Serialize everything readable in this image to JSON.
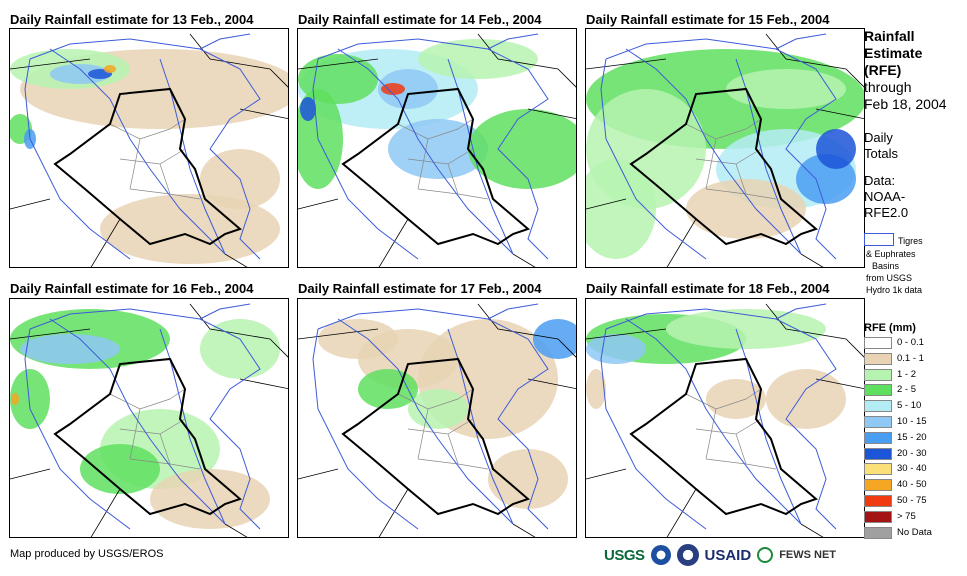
{
  "panels": [
    {
      "title": "Daily Rainfall estimate for 13 Feb., 2004"
    },
    {
      "title": "Daily Rainfall estimate for 14 Feb., 2004"
    },
    {
      "title": "Daily Rainfall estimate for 15 Feb., 2004"
    },
    {
      "title": "Daily Rainfall estimate for 16 Feb., 2004"
    },
    {
      "title": "Daily Rainfall estimate for 17 Feb., 2004"
    },
    {
      "title": "Daily Rainfall estimate for 18 Feb., 2004"
    }
  ],
  "legend": {
    "title_1": "Rainfall",
    "title_2": "Estimate",
    "title_3": "(RFE)",
    "through": "through",
    "through_date": "Feb 18, 2004",
    "daily_1": "Daily",
    "daily_2": "Totals",
    "data_1": "Data:",
    "data_2": "NOAA-",
    "data_3": "RFE2.0",
    "basin_1": "Tigres",
    "basin_2": "& Euphrates",
    "basin_3": "Basins",
    "basin_4": "from USGS",
    "basin_5": "Hydro 1k data",
    "rfe_head": "RFE (mm)",
    "classes": [
      {
        "label": "0 - 0.1",
        "color": "#ffffff"
      },
      {
        "label": "0.1 - 1",
        "color": "#e8d3b4"
      },
      {
        "label": "1 - 2",
        "color": "#b6f3b0"
      },
      {
        "label": "2 - 5",
        "color": "#5fdf5f"
      },
      {
        "label": "5 - 10",
        "color": "#b4ecf4"
      },
      {
        "label": "10 - 15",
        "color": "#8ec8f4"
      },
      {
        "label": "15 - 20",
        "color": "#4a9ef2"
      },
      {
        "label": "20 - 30",
        "color": "#1c55d8"
      },
      {
        "label": "30 - 40",
        "color": "#fbe07a"
      },
      {
        "label": "40 - 50",
        "color": "#f5a623"
      },
      {
        "label": "50 - 75",
        "color": "#ef3a12"
      },
      {
        "label": "> 75",
        "color": "#a51414"
      },
      {
        "label": "No Data",
        "color": "#a0a0a0"
      }
    ]
  },
  "footer": {
    "credit": "Map produced by USGS/EROS"
  },
  "logos": {
    "usgs": "USGS",
    "usaid": "USAID",
    "fews": "FEWS NET"
  }
}
